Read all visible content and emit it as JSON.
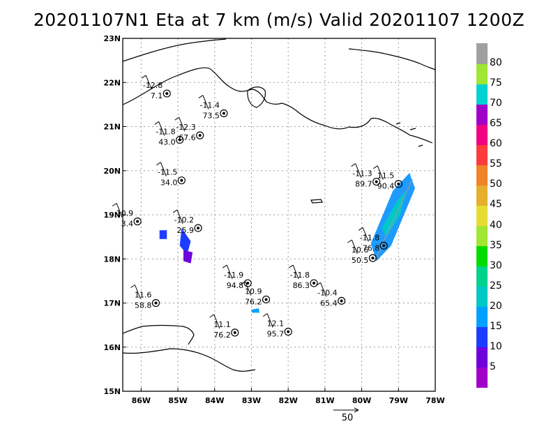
{
  "title": "20201107N1 Eta at 7 km (m/s) Valid 20201107 1200Z",
  "lon_ticks": [
    {
      "lon": -86,
      "label": "86W"
    },
    {
      "lon": -85,
      "label": "85W"
    },
    {
      "lon": -84,
      "label": "84W"
    },
    {
      "lon": -83,
      "label": "83W"
    },
    {
      "lon": -82,
      "label": "82W"
    },
    {
      "lon": -81,
      "label": "81W"
    },
    {
      "lon": -80,
      "label": "80W"
    },
    {
      "lon": -79,
      "label": "79W"
    },
    {
      "lon": -78,
      "label": "78W"
    }
  ],
  "lat_ticks": [
    {
      "lat": 15,
      "label": "15N"
    },
    {
      "lat": 16,
      "label": "16N"
    },
    {
      "lat": 17,
      "label": "17N"
    },
    {
      "lat": 18,
      "label": "18N"
    },
    {
      "lat": 19,
      "label": "19N"
    },
    {
      "lat": 20,
      "label": "20N"
    },
    {
      "lat": 21,
      "label": "21N"
    },
    {
      "lat": 22,
      "label": "22N"
    },
    {
      "lat": 23,
      "label": "23N"
    }
  ],
  "stations": [
    {
      "lon": -85.3,
      "lat": 21.75,
      "t": "-12.8",
      "p": "7.1"
    },
    {
      "lon": -83.75,
      "lat": 21.3,
      "t": "-11.4",
      "p": "73.5"
    },
    {
      "lon": -84.4,
      "lat": 20.8,
      "t": "-12.3",
      "p": "67.6"
    },
    {
      "lon": -84.95,
      "lat": 20.7,
      "t": "-11.8",
      "p": "43.0"
    },
    {
      "lon": -84.9,
      "lat": 19.78,
      "t": "-11.5",
      "p": "34.0"
    },
    {
      "lon": -86.1,
      "lat": 18.85,
      "t": "10.9",
      "p": "3.4"
    },
    {
      "lon": -84.45,
      "lat": 18.7,
      "t": "-10.2",
      "p": "25.9"
    },
    {
      "lon": -79.6,
      "lat": 19.75,
      "t": "-11.3",
      "p": "89.7"
    },
    {
      "lon": -79.0,
      "lat": 19.7,
      "t": "11.5",
      "p": "90.4"
    },
    {
      "lon": -79.4,
      "lat": 18.3,
      "t": "-11.8",
      "p": "76.8"
    },
    {
      "lon": -79.7,
      "lat": 18.02,
      "t": "10.6",
      "p": "50.5"
    },
    {
      "lon": -83.1,
      "lat": 17.45,
      "t": "-11.9",
      "p": "94.8"
    },
    {
      "lon": -81.3,
      "lat": 17.45,
      "t": "-11.8",
      "p": "86.3"
    },
    {
      "lon": -82.6,
      "lat": 17.08,
      "t": "10.9",
      "p": "76.2"
    },
    {
      "lon": -80.55,
      "lat": 17.05,
      "t": "-10.4",
      "p": "65.4"
    },
    {
      "lon": -85.6,
      "lat": 17.0,
      "t": "11.6",
      "p": "58.8"
    },
    {
      "lon": -83.45,
      "lat": 16.33,
      "t": "11.1",
      "p": "76.2"
    },
    {
      "lon": -82.0,
      "lat": 16.35,
      "t": "12.1",
      "p": "95.7"
    }
  ],
  "colorbar": {
    "levels": [
      "5",
      "10",
      "15",
      "20",
      "25",
      "30",
      "35",
      "40",
      "45",
      "50",
      "55",
      "60",
      "65",
      "70",
      "75",
      "80"
    ],
    "colors": [
      "#a000c8",
      "#6e00dc",
      "#1e3cff",
      "#00a0ff",
      "#00c8c8",
      "#00d28c",
      "#00dc00",
      "#a0e632",
      "#e6dc32",
      "#e6af2d",
      "#f08228",
      "#fa3c3c",
      "#f00082",
      "#a000c8",
      "#00d2d2",
      "#a0e632",
      "#a0a0a0"
    ]
  },
  "scale_vector": {
    "label": "50"
  }
}
